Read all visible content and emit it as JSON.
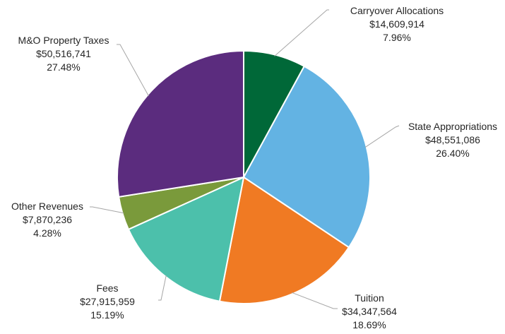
{
  "chart_data": {
    "type": "pie",
    "title": "",
    "slices": [
      {
        "label": "Carryover Allocations",
        "value_text": "$14,609,914",
        "value": 14609914,
        "percent": "7.96%",
        "color": "#006838"
      },
      {
        "label": "State Appropriations",
        "value_text": "$48,551,086",
        "value": 48551086,
        "percent": "26.40%",
        "color": "#63b3e3"
      },
      {
        "label": "Tuition",
        "value_text": "$34,347,564",
        "value": 34347564,
        "percent": "18.69%",
        "color": "#f07a23"
      },
      {
        "label": "Fees",
        "value_text": "$27,915,959",
        "value": 27915959,
        "percent": "15.19%",
        "color": "#4cc0ab"
      },
      {
        "label": "Other Revenues",
        "value_text": "$7,870,236",
        "value": 7870236,
        "percent": "4.28%",
        "color": "#7a9a3b"
      },
      {
        "label": "M&O Property Taxes",
        "value_text": "$50,516,741",
        "value": 50516741,
        "percent": "27.48%",
        "color": "#5b2c7e"
      }
    ],
    "legend": "none",
    "data_labels": "outside with leader lines"
  }
}
